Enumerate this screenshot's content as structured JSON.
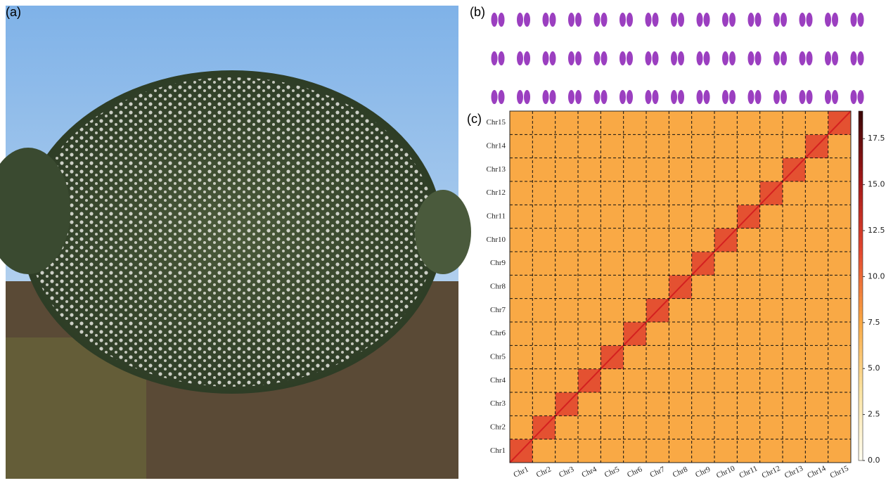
{
  "panel_labels": [
    "(a)",
    "(b)",
    "(c)"
  ],
  "chart_data": {
    "type": "heatmap",
    "categories": [
      "Chr1",
      "Chr2",
      "Chr3",
      "Chr4",
      "Chr5",
      "Chr6",
      "Chr7",
      "Chr8",
      "Chr9",
      "Chr10",
      "Chr11",
      "Chr12",
      "Chr13",
      "Chr14",
      "Chr15"
    ],
    "values": [
      [
        11,
        7.5,
        7.5,
        7.5,
        7.5,
        7.5,
        7.5,
        7.5,
        7.5,
        7.5,
        7.5,
        7.5,
        7.5,
        7.5,
        7.5
      ],
      [
        7.5,
        11,
        7.5,
        7.5,
        7.5,
        7.5,
        7.5,
        7.5,
        7.5,
        7.5,
        7.5,
        7.5,
        7.5,
        7.5,
        7.5
      ],
      [
        7.5,
        7.5,
        11,
        7.5,
        7.5,
        7.5,
        7.5,
        7.5,
        7.5,
        7.5,
        7.5,
        7.5,
        7.5,
        7.5,
        7.5
      ],
      [
        7.5,
        7.5,
        7.5,
        11,
        7.5,
        7.5,
        7.5,
        7.5,
        7.5,
        7.5,
        7.5,
        7.5,
        7.5,
        7.5,
        7.5
      ],
      [
        7.5,
        7.5,
        7.5,
        7.5,
        11,
        7.5,
        7.5,
        7.5,
        7.5,
        7.5,
        7.5,
        7.5,
        7.5,
        7.5,
        7.5
      ],
      [
        7.5,
        7.5,
        7.5,
        7.5,
        7.5,
        11,
        7.5,
        7.5,
        7.5,
        7.5,
        7.5,
        7.5,
        7.5,
        7.5,
        7.5
      ],
      [
        7.5,
        7.5,
        7.5,
        7.5,
        7.5,
        7.5,
        11,
        7.5,
        7.5,
        7.5,
        7.5,
        7.5,
        7.5,
        7.5,
        7.5
      ],
      [
        7.5,
        7.5,
        7.5,
        7.5,
        7.5,
        7.5,
        7.5,
        11,
        7.5,
        7.5,
        7.5,
        7.5,
        7.5,
        7.5,
        7.5
      ],
      [
        7.5,
        7.5,
        7.5,
        7.5,
        7.5,
        7.5,
        7.5,
        7.5,
        11,
        7.5,
        7.5,
        7.5,
        7.5,
        7.5,
        7.5
      ],
      [
        7.5,
        7.5,
        7.5,
        7.5,
        7.5,
        7.5,
        7.5,
        7.5,
        7.5,
        11,
        7.5,
        7.5,
        7.5,
        7.5,
        7.5
      ],
      [
        7.5,
        7.5,
        7.5,
        7.5,
        7.5,
        7.5,
        7.5,
        7.5,
        7.5,
        7.5,
        11,
        7.5,
        7.5,
        7.5,
        7.5
      ],
      [
        7.5,
        7.5,
        7.5,
        7.5,
        7.5,
        7.5,
        7.5,
        7.5,
        7.5,
        7.5,
        7.5,
        11,
        7.5,
        7.5,
        7.5
      ],
      [
        7.5,
        7.5,
        7.5,
        7.5,
        7.5,
        7.5,
        7.5,
        7.5,
        7.5,
        7.5,
        7.5,
        7.5,
        11,
        7.5,
        7.5
      ],
      [
        7.5,
        7.5,
        7.5,
        7.5,
        7.5,
        7.5,
        7.5,
        7.5,
        7.5,
        7.5,
        7.5,
        7.5,
        7.5,
        11,
        7.5
      ],
      [
        7.5,
        7.5,
        7.5,
        7.5,
        7.5,
        7.5,
        7.5,
        7.5,
        7.5,
        7.5,
        7.5,
        7.5,
        7.5,
        7.5,
        11
      ]
    ],
    "clim": [
      0,
      19
    ],
    "cticks": [
      {
        "value": 0,
        "label": "0.0"
      },
      2.5,
      {
        "value": 5,
        "label": "5.0"
      },
      7.5,
      {
        "value": 10,
        "label": "10.0"
      },
      12.5,
      {
        "value": 15,
        "label": "15.0"
      },
      17.5
    ],
    "colormap": [
      "#fffdf0",
      "#fbe3a2",
      "#f9a743",
      "#e2472f",
      "#a31717",
      "#3a0606"
    ]
  }
}
